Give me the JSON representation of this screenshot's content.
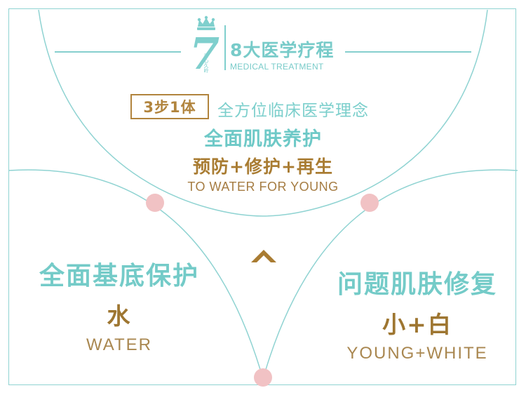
{
  "brand": {
    "logo_number": "7",
    "logo_tagline": "秦心久岭",
    "title_cn": "8大医学疗程",
    "title_en": "MEDICAL TREATMENT"
  },
  "concept": {
    "badge": "3步1体",
    "slogan": "全方位临床医学理念",
    "headline": "全面肌肤养护",
    "steps": "预防+修护+再生",
    "english": "TO WATER FOR YOUNG"
  },
  "left": {
    "title": "全面基底保护",
    "subtitle": "水",
    "english": "WATER"
  },
  "right": {
    "title": "问题肌肤修复",
    "subtitle": "小+白",
    "english": "YOUNG+WHITE"
  },
  "colors": {
    "teal": "#7fcfcd",
    "gold": "#b1843d",
    "pink": "#f1c2c4"
  },
  "icons": {
    "crown": "crown-icon",
    "chevron": "chevron-up-icon"
  }
}
